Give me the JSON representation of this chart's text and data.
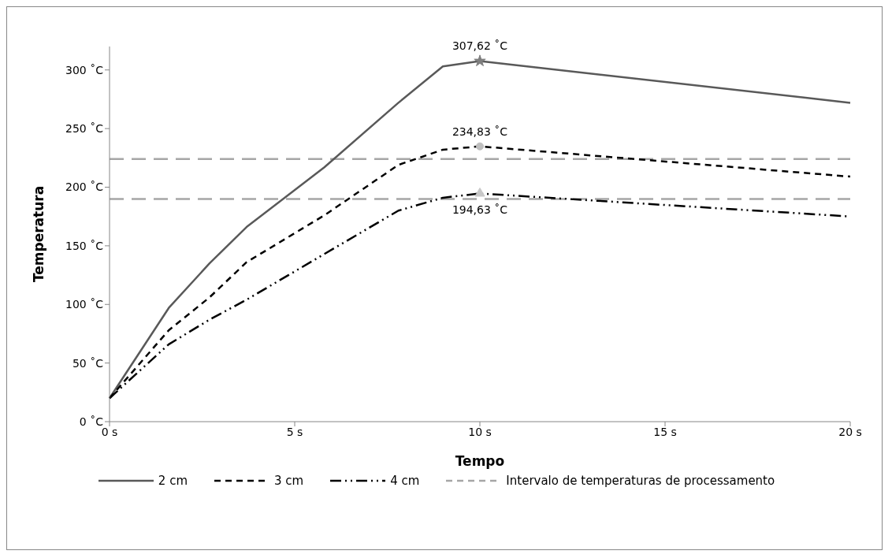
{
  "chart_data": {
    "type": "line",
    "xlabel": "Tempo",
    "ylabel": "Temperatura",
    "xlim": [
      0,
      20
    ],
    "xticks": [
      {
        "value": 0,
        "label": "0 s"
      },
      {
        "value": 5,
        "label": "5 s"
      },
      {
        "value": 10,
        "label": "10 s"
      },
      {
        "value": 15,
        "label": "15 s"
      },
      {
        "value": 20,
        "label": "20 s"
      }
    ],
    "ylim": [
      0,
      320
    ],
    "yticks": [
      {
        "value": 0,
        "label": "0 ˚C"
      },
      {
        "value": 50,
        "label": "50 ˚C"
      },
      {
        "value": 100,
        "label": "100 ˚C"
      },
      {
        "value": 150,
        "label": "150 ˚C"
      },
      {
        "value": 200,
        "label": "200 ˚C"
      },
      {
        "value": 250,
        "label": "250 ˚C"
      },
      {
        "value": 300,
        "label": "300 ˚C"
      }
    ],
    "grid": false,
    "legend": "bottom",
    "marker": "none",
    "series": [
      {
        "name": "2 cm",
        "color": "#595959",
        "line_style": "solid",
        "x": [
          0,
          1.6,
          2.7,
          3.7,
          5.8,
          7.8,
          9,
          10,
          20
        ],
        "values": [
          20,
          97,
          135,
          166,
          217,
          272,
          303,
          307.62,
          272
        ]
      },
      {
        "name": "3 cm",
        "color": "#000000",
        "line_style": "dashed",
        "x": [
          0,
          1.6,
          2.7,
          3.7,
          5.8,
          7.8,
          9,
          10,
          20
        ],
        "values": [
          20,
          78,
          106,
          136,
          176,
          219,
          232,
          234.83,
          209
        ]
      },
      {
        "name": "4 cm",
        "color": "#000000",
        "line_style": "dotted",
        "x": [
          0,
          1.6,
          2.7,
          3.7,
          5.8,
          7.8,
          9,
          10,
          20
        ],
        "values": [
          20,
          66,
          87,
          104,
          143,
          180,
          191,
          194.63,
          175
        ]
      },
      {
        "type": "scatter",
        "color": "#7f7f7f",
        "marker": "star",
        "x": [
          10
        ],
        "values": [
          307.62
        ],
        "value_labels": [
          "307,62 ˚C"
        ]
      },
      {
        "type": "scatter",
        "color": "#bfbfbf",
        "marker": "circle",
        "x": [
          10
        ],
        "values": [
          234.83
        ],
        "value_labels": [
          "234,83 ˚C"
        ]
      },
      {
        "type": "scatter",
        "color": "#c8c8c8",
        "marker": "triangle",
        "x": [
          10
        ],
        "values": [
          194.63
        ],
        "value_labels": [
          "194,63 ˚C"
        ]
      }
    ],
    "ref_lines": [
      {
        "axis": "y",
        "value": 224,
        "label": "Intervalo de temperaturas de processamento",
        "color": "#a6a6a6",
        "line_style": "dashed"
      },
      {
        "axis": "y",
        "value": 190,
        "color": "#a6a6a6",
        "line_style": "dashed"
      }
    ]
  }
}
